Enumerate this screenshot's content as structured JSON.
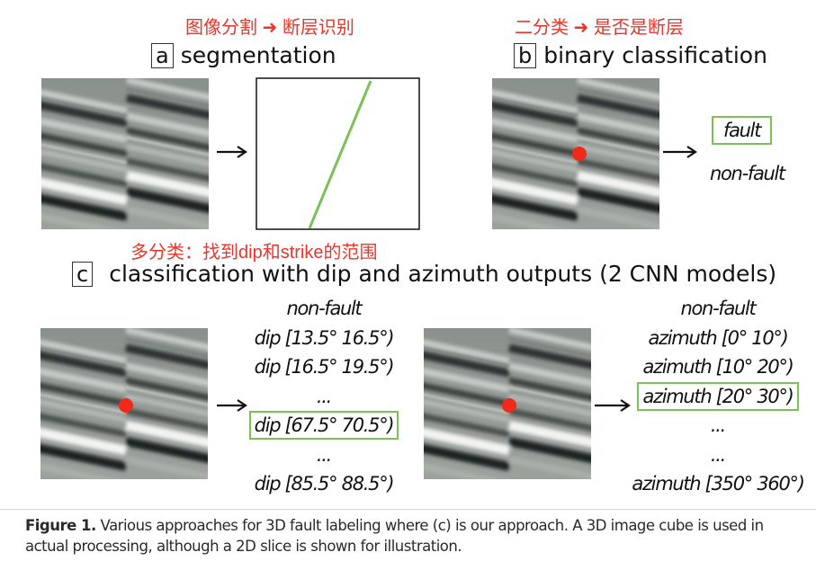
{
  "notes": {
    "a": "图像分割 ➜ 断层识别",
    "b": "二分类 ➜ 是否是断层",
    "c": "多分类：找到dip和strike的范围"
  },
  "panels": {
    "a": {
      "letter": "a",
      "title": "segmentation"
    },
    "b": {
      "letter": "b",
      "title": "binary classification",
      "options": [
        "fault",
        "non-fault"
      ]
    },
    "c": {
      "letter": "c",
      "title": "classification with dip and azimuth outputs (2 CNN models)"
    }
  },
  "dip_list": [
    "non-fault",
    "dip [13.5° 16.5°)",
    "dip [16.5° 19.5°)",
    "...",
    "dip [67.5° 70.5°)",
    "...",
    "dip [85.5° 88.5°)"
  ],
  "azimuth_list": [
    "non-fault",
    "azimuth [0° 10°)",
    "azimuth [10° 20°)",
    "azimuth [20° 30°)",
    "...",
    "...",
    "azimuth [350° 360°)"
  ],
  "highlight": {
    "dip_index": 4,
    "azimuth_index": 3
  },
  "caption": {
    "label": "Figure 1.",
    "text": " Various approaches for 3D fault labeling where (c) is our approach. A 3D image cube is used in actual processing, although a 2D slice is shown for illustration."
  },
  "colors": {
    "note_red": "#e8362b",
    "fault_line": "#7cc05a",
    "marker": "#f02a1a"
  }
}
